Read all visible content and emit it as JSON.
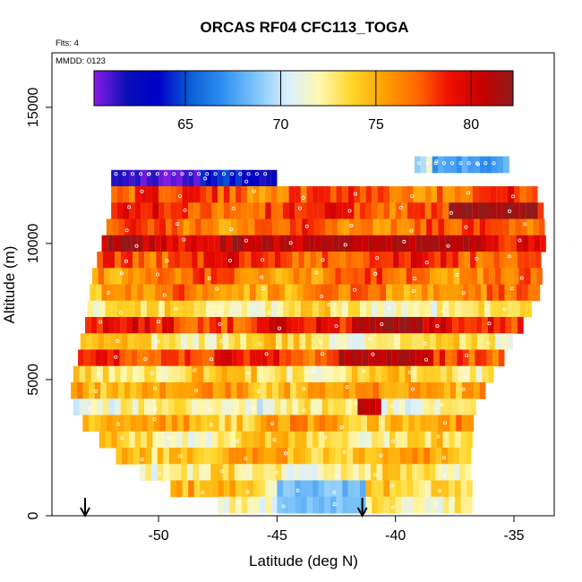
{
  "chart_data": {
    "type": "heatmap",
    "title": "ORCAS RF04 CFC113_TOGA",
    "xlabel": "Latitude (deg N)",
    "ylabel": "Altitude (m)",
    "xlim": [
      -54.5,
      -33.3
    ],
    "ylim": [
      0,
      17000
    ],
    "xticks": [
      -50,
      -45,
      -40,
      -35
    ],
    "yticks": [
      0,
      5000,
      10000,
      15000
    ],
    "annotations": [
      "Flts: 4",
      "MMDD: 0123"
    ],
    "colorbar": {
      "range": [
        60.2,
        82.2
      ],
      "ticks": [
        65,
        70,
        75,
        80
      ],
      "colors": [
        "#8b1ce6",
        "#0b0fb8",
        "#0000c8",
        "#0a5fd6",
        "#2f8ff2",
        "#7cc4f8",
        "#d9efff",
        "#fff8b0",
        "#ffd62a",
        "#ffa000",
        "#ff6a00",
        "#f01000",
        "#c80000",
        "#8e1a1a"
      ]
    },
    "markers": [
      {
        "label": "flight-arrow",
        "lat": -53.1
      },
      {
        "label": "flight-arrow",
        "lat": -41.4
      }
    ],
    "layers": [
      {
        "alt": 12900,
        "lat_min": -39.2,
        "lat_max": -35.4,
        "value": 70.0
      },
      {
        "alt": 12400,
        "lat_min": -52.0,
        "lat_max": -45.0,
        "value": 63.5
      },
      {
        "alt": 11800,
        "lat_min": -52.0,
        "lat_max": -34.0,
        "value": 77.5
      },
      {
        "alt": 11200,
        "lat_min": -52.0,
        "lat_max": -33.9,
        "value": 78.0
      },
      {
        "alt": 10600,
        "lat_min": -52.2,
        "lat_max": -33.8,
        "value": 77.0
      },
      {
        "alt": 10000,
        "lat_min": -52.4,
        "lat_max": -33.8,
        "value": 80.0
      },
      {
        "alt": 9400,
        "lat_min": -52.6,
        "lat_max": -33.9,
        "value": 78.0
      },
      {
        "alt": 8800,
        "lat_min": -52.8,
        "lat_max": -34.0,
        "value": 76.5
      },
      {
        "alt": 8200,
        "lat_min": -52.9,
        "lat_max": -34.1,
        "value": 76.0
      },
      {
        "alt": 7600,
        "lat_min": -53.0,
        "lat_max": -34.4,
        "value": 72.5
      },
      {
        "alt": 7000,
        "lat_min": -53.1,
        "lat_max": -34.8,
        "value": 78.5
      },
      {
        "alt": 6400,
        "lat_min": -53.3,
        "lat_max": -35.2,
        "value": 73.0
      },
      {
        "alt": 5800,
        "lat_min": -53.4,
        "lat_max": -35.6,
        "value": 78.0
      },
      {
        "alt": 5200,
        "lat_min": -53.6,
        "lat_max": -36.0,
        "value": 73.5
      },
      {
        "alt": 4600,
        "lat_min": -53.7,
        "lat_max": -36.3,
        "value": 75.5
      },
      {
        "alt": 4000,
        "lat_min": -53.6,
        "lat_max": -36.6,
        "value": 72.0
      },
      {
        "alt": 3400,
        "lat_min": -53.2,
        "lat_max": -36.8,
        "value": 75.0
      },
      {
        "alt": 2800,
        "lat_min": -52.5,
        "lat_max": -36.9,
        "value": 73.0
      },
      {
        "alt": 2200,
        "lat_min": -51.8,
        "lat_max": -37.0,
        "value": 74.5
      },
      {
        "alt": 1600,
        "lat_min": -50.8,
        "lat_max": -37.0,
        "value": 72.5
      },
      {
        "alt": 1000,
        "lat_min": -49.5,
        "lat_max": -36.9,
        "value": 74.0
      },
      {
        "alt": 400,
        "lat_min": -47.5,
        "lat_max": -36.8,
        "value": 72.5
      }
    ],
    "hotspots": [
      {
        "alt": 11300,
        "lat_min": -37.8,
        "lat_max": -34.2,
        "value": 82.0
      },
      {
        "alt": 10000,
        "lat_min": -44.0,
        "lat_max": -36.5,
        "value": 81.0
      },
      {
        "alt": 7000,
        "lat_min": -42.0,
        "lat_max": -39.0,
        "value": 81.5
      },
      {
        "alt": 5900,
        "lat_min": -42.5,
        "lat_max": -38.5,
        "value": 81.0
      },
      {
        "alt": 12300,
        "lat_min": -52.0,
        "lat_max": -48.5,
        "value": 61.0
      },
      {
        "alt": 12900,
        "lat_min": -38.5,
        "lat_max": -35.5,
        "value": 67.5
      },
      {
        "alt": 700,
        "lat_min": -45.0,
        "lat_max": -41.5,
        "value": 68.5
      },
      {
        "alt": 3900,
        "lat_min": -41.6,
        "lat_max": -40.7,
        "value": 81.0
      }
    ]
  }
}
